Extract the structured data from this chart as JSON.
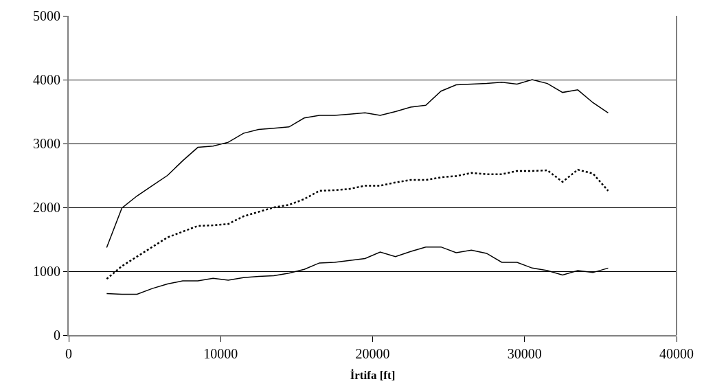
{
  "chart_data": {
    "type": "line",
    "xlabel": "İrtifa [ft]",
    "x": [
      2500,
      3500,
      4500,
      5500,
      6500,
      7500,
      8500,
      9500,
      10500,
      11500,
      12500,
      13500,
      14500,
      15500,
      16500,
      17500,
      18500,
      19500,
      20500,
      21500,
      22500,
      23500,
      24500,
      25500,
      26500,
      27500,
      28500,
      29500,
      30500,
      31500,
      32500,
      33500,
      34500,
      35500
    ],
    "series": [
      {
        "color": "#000000",
        "line_style": "solid",
        "values": [
          1370,
          1990,
          2180,
          2340,
          2500,
          2730,
          2940,
          2960,
          3020,
          3160,
          3220,
          3240,
          3260,
          3400,
          3440,
          3440,
          3460,
          3480,
          3440,
          3500,
          3570,
          3600,
          3820,
          3920,
          3930,
          3940,
          3960,
          3930,
          4000,
          3940,
          3800,
          3840,
          3640,
          3480
        ]
      },
      {
        "color": "#000000",
        "line_style": "dotted",
        "values": [
          880,
          1080,
          1230,
          1380,
          1530,
          1620,
          1710,
          1720,
          1740,
          1860,
          1930,
          2000,
          2040,
          2130,
          2260,
          2270,
          2290,
          2340,
          2340,
          2390,
          2430,
          2430,
          2470,
          2490,
          2540,
          2520,
          2520,
          2570,
          2570,
          2580,
          2400,
          2590,
          2530,
          2260
        ]
      },
      {
        "color": "#000000",
        "line_style": "solid",
        "values": [
          650,
          640,
          640,
          730,
          800,
          850,
          850,
          890,
          860,
          900,
          920,
          930,
          970,
          1030,
          1130,
          1140,
          1170,
          1200,
          1300,
          1230,
          1310,
          1380,
          1380,
          1290,
          1330,
          1280,
          1140,
          1140,
          1050,
          1010,
          940,
          1010,
          980,
          1050
        ]
      }
    ],
    "xlim": [
      0,
      40000
    ],
    "xticks": [
      0,
      10000,
      20000,
      30000,
      40000
    ],
    "ylim": [
      0,
      5000
    ],
    "yticks": [
      0,
      1000,
      2000,
      3000,
      4000,
      5000
    ],
    "grid": "y",
    "marker": "none"
  }
}
